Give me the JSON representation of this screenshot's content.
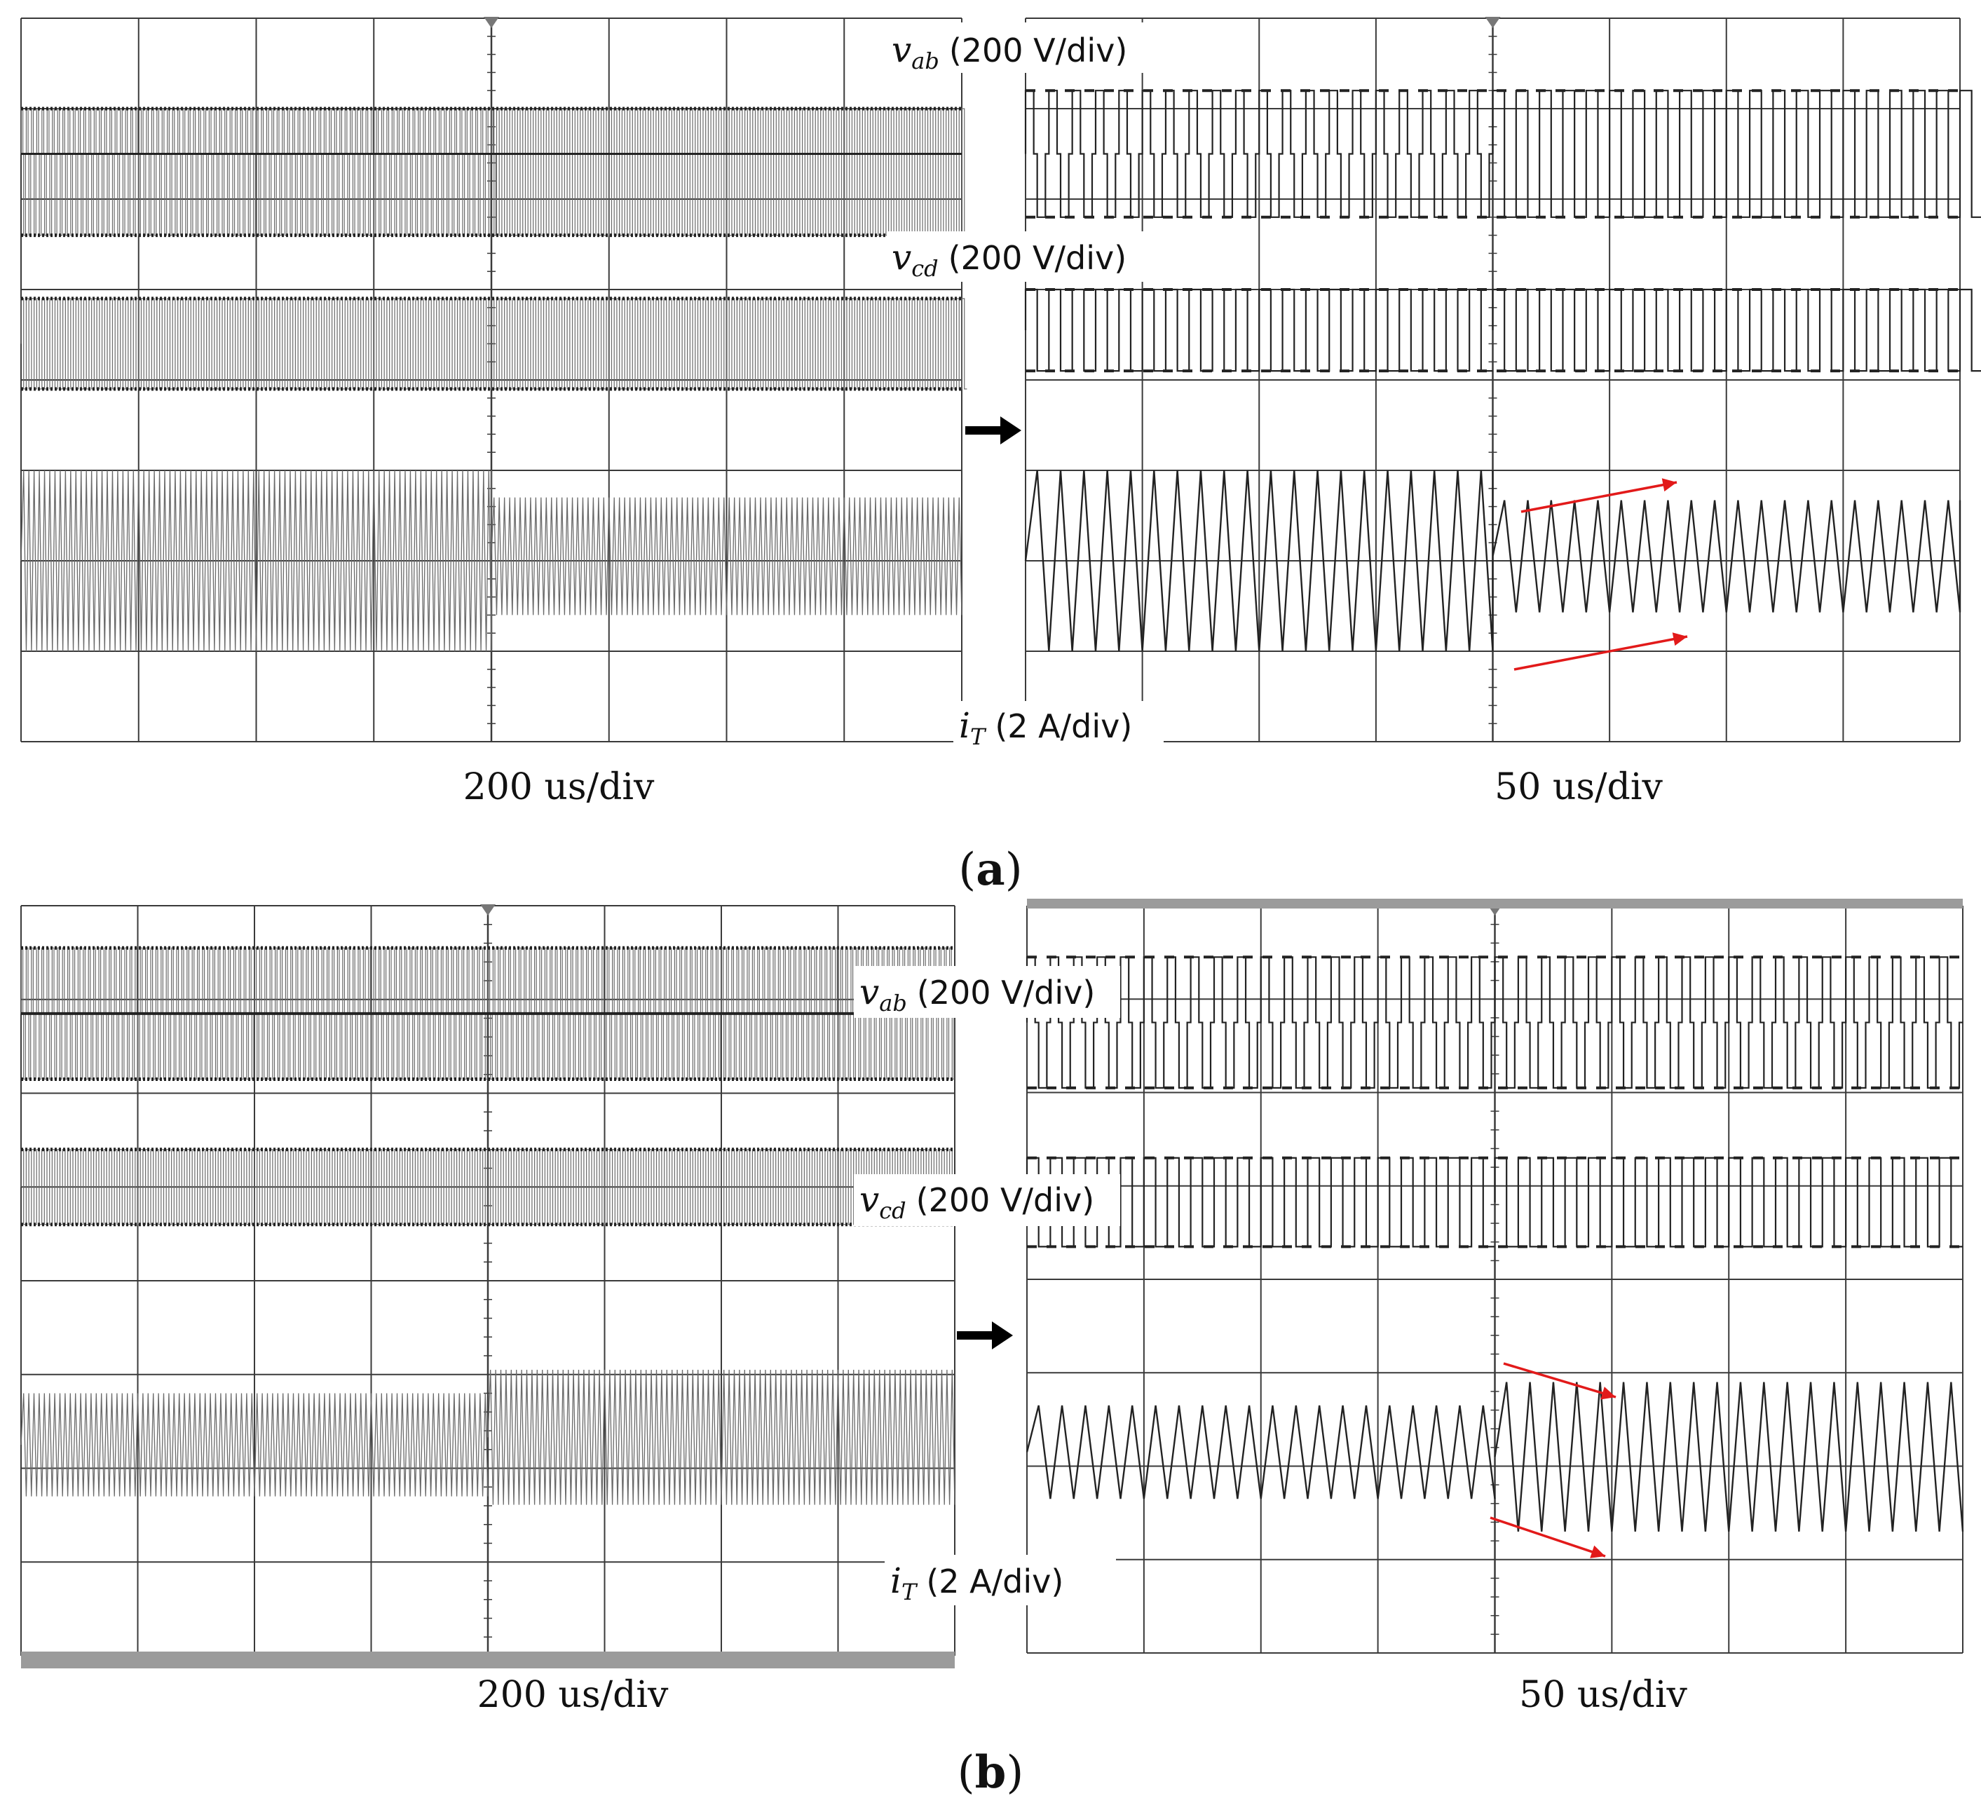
{
  "chart_data": [
    {
      "type": "line",
      "figure": "a",
      "view": "left",
      "timebase": "200 us/div",
      "grid": true,
      "divisions": {
        "x": 8,
        "y": 8
      },
      "series": [
        {
          "name": "v_ab",
          "scale": "200 V/div",
          "color": "#000000",
          "before": "three-level quasi-square, zero-level present",
          "after": "zero-level removed (two-level square)"
        },
        {
          "name": "v_cd",
          "scale": "200 V/div",
          "color": "#000000",
          "before": "two-level square",
          "after": "two-level square"
        },
        {
          "name": "i_T",
          "scale": "2 A/div",
          "color": "#333333",
          "amplitude_div_before": 1.0,
          "amplitude_div_after": 0.65,
          "offset_div_after": -0.05
        }
      ]
    },
    {
      "type": "line",
      "figure": "a",
      "view": "right",
      "timebase": "50 us/div",
      "grid": true,
      "divisions": {
        "x": 8,
        "y": 8
      },
      "series": [
        {
          "name": "v_ab",
          "scale": "200 V/div",
          "color": "#000000",
          "cycles_before": 20,
          "cycles_after": 20
        },
        {
          "name": "v_cd",
          "scale": "200 V/div",
          "color": "#000000",
          "cycles_before": 20,
          "cycles_after": 20
        },
        {
          "name": "i_T",
          "scale": "2 A/div",
          "color": "#333333",
          "amplitude_div_before": 1.0,
          "amplitude_div_after": 0.62,
          "offset_div_after": -0.05
        }
      ],
      "annotations": [
        "red arrows indicating transition of i_T envelope"
      ]
    },
    {
      "type": "line",
      "figure": "b",
      "view": "left",
      "timebase": "200 us/div",
      "grid": true,
      "divisions": {
        "x": 8,
        "y": 8
      },
      "series": [
        {
          "name": "v_ab",
          "scale": "200 V/div",
          "color": "#000000",
          "before": "three-level quasi-square",
          "after": "three-level quasi-square"
        },
        {
          "name": "v_cd",
          "scale": "200 V/div",
          "color": "#000000",
          "before": "two-level square",
          "after": "two-level square"
        },
        {
          "name": "i_T",
          "scale": "2 A/div",
          "color": "#333333",
          "amplitude_div_before": 0.55,
          "amplitude_div_after": 0.72,
          "offset_div_after": -0.08
        }
      ]
    },
    {
      "type": "line",
      "figure": "b",
      "view": "right",
      "timebase": "50 us/div",
      "grid": true,
      "divisions": {
        "x": 8,
        "y": 8
      },
      "series": [
        {
          "name": "v_ab",
          "scale": "200 V/div",
          "color": "#000000",
          "cycles_before": 20,
          "cycles_after": 20
        },
        {
          "name": "v_cd",
          "scale": "200 V/div",
          "color": "#000000",
          "cycles_before": 20,
          "cycles_after": 20
        },
        {
          "name": "i_T",
          "scale": "2 A/div",
          "color": "#333333",
          "amplitude_div_before": 0.5,
          "amplitude_div_after": 0.8,
          "offset_div_after": 0.05
        }
      ],
      "annotations": [
        "red arrows indicating transition of i_T envelope"
      ]
    }
  ],
  "labels": {
    "a": {
      "vab_sym": "v",
      "vab_sub": "ab",
      "vab_scale": "(200 V/div)",
      "vcd_sym": "v",
      "vcd_sub": "cd",
      "vcd_scale": "(200 V/div)",
      "it_sym": "i",
      "it_sub": "T",
      "it_scale": "(2 A/div)",
      "timebase_left": "200 us/div",
      "timebase_right": "50 us/div",
      "caption_open": "(",
      "caption_letter": "a",
      "caption_close": ")"
    },
    "b": {
      "vab_sym": "v",
      "vab_sub": "ab",
      "vab_scale": "(200 V/div)",
      "vcd_sym": "v",
      "vcd_sub": "cd",
      "vcd_scale": "(200 V/div)",
      "it_sym": "i",
      "it_sub": "T",
      "it_scale": "(2 A/div)",
      "timebase_left": "200 us/div",
      "timebase_right": "50 us/div",
      "caption_open": "(",
      "caption_letter": "b",
      "caption_close": ")"
    }
  },
  "colors": {
    "grid": "#3a3a3a",
    "trace": "#222222",
    "dense_trace": "#6a6a6a",
    "arrow_red": "#e21a1a",
    "arrow_black": "#000000",
    "frame_band": "#9b9b9b"
  }
}
